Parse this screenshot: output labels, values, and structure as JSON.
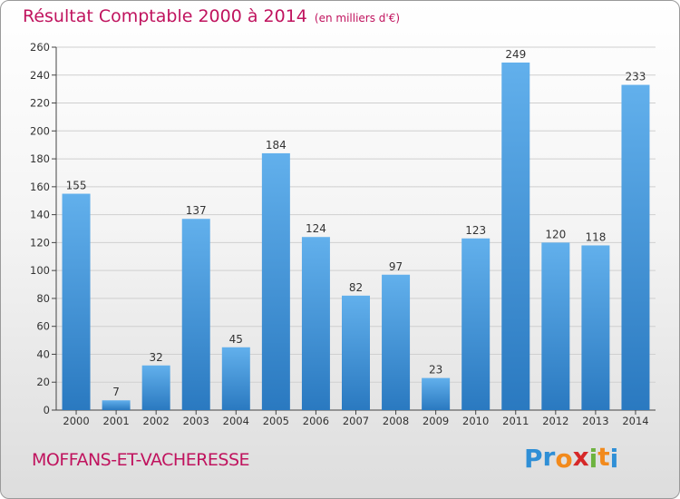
{
  "title": "Résultat Comptable 2000 à 2014",
  "subtitle": "(en milliers d'€)",
  "commune": "MOFFANS-ET-VACHERESSE",
  "logo": {
    "letters": [
      "P",
      "r",
      "o",
      "x",
      "i",
      "t",
      "i"
    ],
    "colors": [
      "#2f8fd6",
      "#2f8fd6",
      "#f28a1c",
      "#d62828",
      "#6db33f",
      "#f28a1c",
      "#2f8fd6"
    ]
  },
  "colors": {
    "bar_top": "#62b0ec",
    "bar_bottom": "#2a79c0",
    "title": "#c0135e",
    "grid": "#cfcfcf"
  },
  "chart_data": {
    "type": "bar",
    "title": "Résultat Comptable 2000 à 2014",
    "subtitle": "(en milliers d'€)",
    "xlabel": "",
    "ylabel": "",
    "categories": [
      "2000",
      "2001",
      "2002",
      "2003",
      "2004",
      "2005",
      "2006",
      "2007",
      "2008",
      "2009",
      "2010",
      "2011",
      "2012",
      "2013",
      "2014"
    ],
    "values": [
      155,
      7,
      32,
      137,
      45,
      184,
      124,
      82,
      97,
      23,
      123,
      249,
      120,
      118,
      233
    ],
    "ylim": [
      0,
      260
    ],
    "yticks": [
      0,
      20,
      40,
      60,
      80,
      100,
      120,
      140,
      160,
      180,
      200,
      220,
      240,
      260
    ],
    "grid": true
  }
}
